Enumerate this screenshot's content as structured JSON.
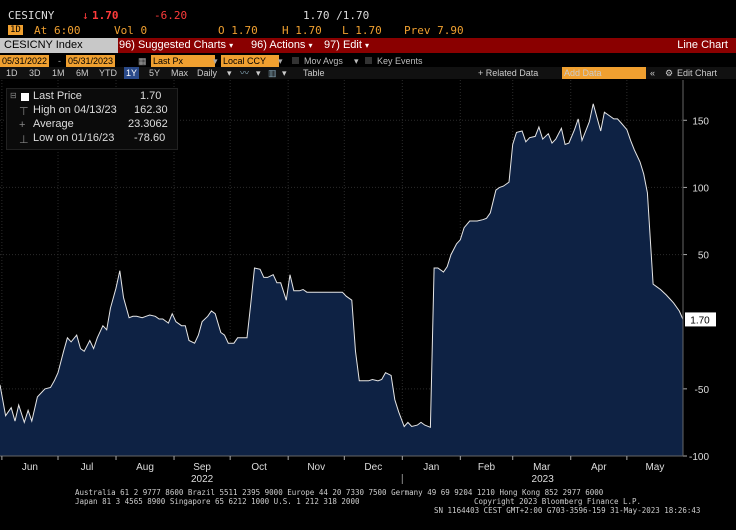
{
  "quote": {
    "ticker": "CESICNY",
    "last": "1.70",
    "change": "-6.20",
    "slash_quote": "1.70 /1.70",
    "at_label": "At",
    "at_time": "6:00",
    "vol": "Vol 0",
    "open": "O 1.70",
    "high": "H 1.70",
    "low": "L 1.70",
    "prev": "Prev 7.90",
    "key_label": "1D"
  },
  "fnbar": {
    "security": "CESICNY Index",
    "items": [
      {
        "num": "96)",
        "label": "Suggested Charts"
      },
      {
        "num": "96)",
        "label": "Actions"
      },
      {
        "num": "97)",
        "label": "Edit"
      }
    ],
    "title": "Line Chart"
  },
  "options": {
    "start_date": "05/31/2022",
    "end_date": "05/31/2023",
    "field": "Last Px",
    "currency": "Local CCY",
    "mov_avgs": "Mov Avgs",
    "key_events": "Key Events"
  },
  "toolbar": {
    "periods": [
      "1D",
      "3D",
      "1M",
      "6M",
      "YTD",
      "1Y",
      "5Y",
      "Max"
    ],
    "selected_period": "1Y",
    "frequency": "Daily",
    "table": "Table",
    "related_data": "+ Related Data",
    "add_data_placeholder": "Add Data",
    "edit_chart": "Edit Chart"
  },
  "legend": {
    "last_price_label": "Last Price",
    "last_price_value": "1.70",
    "high_label": "High on 04/13/23",
    "high_value": "162.30",
    "average_label": "Average",
    "average_value": "23.3062",
    "low_label": "Low on 01/16/23",
    "low_value": "-78.60"
  },
  "chart_data": {
    "type": "area",
    "title": "",
    "xlabel": "",
    "ylabel": "",
    "ylim": [
      -100,
      180
    ],
    "yticks": [
      -100,
      -50,
      50,
      100,
      150
    ],
    "last_label": "1.70",
    "month_labels": [
      "Jun",
      "Jul",
      "Aug",
      "Sep",
      "Oct",
      "Nov",
      "Dec",
      "Jan",
      "Feb",
      "Mar",
      "Apr",
      "May"
    ],
    "year_labels": [
      "2022",
      "2023"
    ],
    "colors": {
      "fill": "#0e2244",
      "line": "#e6e6e6"
    },
    "series": [
      {
        "points": [
          [
            "2022-05-31",
            -47
          ],
          [
            "2022-06-03",
            -70
          ],
          [
            "2022-06-06",
            -64
          ],
          [
            "2022-06-08",
            -74
          ],
          [
            "2022-06-10",
            -62
          ],
          [
            "2022-06-13",
            -75
          ],
          [
            "2022-06-15",
            -66
          ],
          [
            "2022-06-17",
            -74
          ],
          [
            "2022-06-20",
            -56
          ],
          [
            "2022-06-22",
            -53
          ],
          [
            "2022-06-24",
            -50
          ],
          [
            "2022-06-27",
            -49
          ],
          [
            "2022-06-29",
            -44
          ],
          [
            "2022-07-01",
            -38
          ],
          [
            "2022-07-04",
            -22
          ],
          [
            "2022-07-06",
            -12
          ],
          [
            "2022-07-08",
            -15
          ],
          [
            "2022-07-11",
            -10
          ],
          [
            "2022-07-13",
            -20
          ],
          [
            "2022-07-15",
            -22
          ],
          [
            "2022-07-18",
            -14
          ],
          [
            "2022-07-20",
            -20
          ],
          [
            "2022-07-22",
            -12
          ],
          [
            "2022-07-25",
            -3
          ],
          [
            "2022-07-27",
            -6
          ],
          [
            "2022-07-29",
            10
          ],
          [
            "2022-08-01",
            25
          ],
          [
            "2022-08-03",
            38
          ],
          [
            "2022-08-05",
            18
          ],
          [
            "2022-08-08",
            3
          ],
          [
            "2022-08-10",
            4
          ],
          [
            "2022-08-12",
            4
          ],
          [
            "2022-08-15",
            3
          ],
          [
            "2022-08-17",
            4
          ],
          [
            "2022-08-19",
            5
          ],
          [
            "2022-08-22",
            4
          ],
          [
            "2022-08-24",
            2
          ],
          [
            "2022-08-26",
            2
          ],
          [
            "2022-08-29",
            -1
          ],
          [
            "2022-08-31",
            6
          ],
          [
            "2022-09-02",
            0
          ],
          [
            "2022-09-05",
            -3
          ],
          [
            "2022-09-07",
            -3
          ],
          [
            "2022-09-09",
            -14
          ],
          [
            "2022-09-12",
            -16
          ],
          [
            "2022-09-14",
            -10
          ],
          [
            "2022-09-16",
            0
          ],
          [
            "2022-09-19",
            4
          ],
          [
            "2022-09-21",
            8
          ],
          [
            "2022-09-23",
            6
          ],
          [
            "2022-09-26",
            -8
          ],
          [
            "2022-09-28",
            -10
          ],
          [
            "2022-09-30",
            -16
          ],
          [
            "2022-10-03",
            -16
          ],
          [
            "2022-10-05",
            -12
          ],
          [
            "2022-10-07",
            -12
          ],
          [
            "2022-10-10",
            -12
          ],
          [
            "2022-10-12",
            13
          ],
          [
            "2022-10-14",
            40
          ],
          [
            "2022-10-17",
            39
          ],
          [
            "2022-10-19",
            33
          ],
          [
            "2022-10-21",
            33
          ],
          [
            "2022-10-24",
            35
          ],
          [
            "2022-10-26",
            29
          ],
          [
            "2022-10-28",
            29
          ],
          [
            "2022-10-31",
            16
          ],
          [
            "2022-11-02",
            35
          ],
          [
            "2022-11-04",
            23
          ],
          [
            "2022-11-07",
            23
          ],
          [
            "2022-11-09",
            24
          ],
          [
            "2022-11-11",
            22
          ],
          [
            "2022-11-14",
            22
          ],
          [
            "2022-11-16",
            22
          ],
          [
            "2022-11-18",
            22
          ],
          [
            "2022-11-21",
            22
          ],
          [
            "2022-11-23",
            22
          ],
          [
            "2022-11-25",
            22
          ],
          [
            "2022-11-28",
            22
          ],
          [
            "2022-11-30",
            22
          ],
          [
            "2022-12-02",
            19
          ],
          [
            "2022-12-05",
            16
          ],
          [
            "2022-12-07",
            -22
          ],
          [
            "2022-12-09",
            -44
          ],
          [
            "2022-12-12",
            -44
          ],
          [
            "2022-12-14",
            -44
          ],
          [
            "2022-12-16",
            -43
          ],
          [
            "2022-12-19",
            -44
          ],
          [
            "2022-12-21",
            -43
          ],
          [
            "2022-12-23",
            -38
          ],
          [
            "2022-12-26",
            -40
          ],
          [
            "2022-12-28",
            -58
          ],
          [
            "2022-12-30",
            -67
          ],
          [
            "2023-01-02",
            -78
          ],
          [
            "2023-01-04",
            -75
          ],
          [
            "2023-01-06",
            -78
          ],
          [
            "2023-01-09",
            -77
          ],
          [
            "2023-01-11",
            -75
          ],
          [
            "2023-01-13",
            -77
          ],
          [
            "2023-01-16",
            -78.6
          ],
          [
            "2023-01-18",
            40
          ],
          [
            "2023-01-20",
            40
          ],
          [
            "2023-01-23",
            37
          ],
          [
            "2023-01-25",
            41
          ],
          [
            "2023-01-27",
            50
          ],
          [
            "2023-01-30",
            58
          ],
          [
            "2023-02-01",
            61
          ],
          [
            "2023-02-03",
            70
          ],
          [
            "2023-02-06",
            75
          ],
          [
            "2023-02-08",
            75
          ],
          [
            "2023-02-10",
            75
          ],
          [
            "2023-02-13",
            76
          ],
          [
            "2023-02-15",
            77
          ],
          [
            "2023-02-17",
            81
          ],
          [
            "2023-02-20",
            98
          ],
          [
            "2023-02-22",
            100
          ],
          [
            "2023-02-24",
            101
          ],
          [
            "2023-02-27",
            104
          ],
          [
            "2023-03-01",
            132
          ],
          [
            "2023-03-03",
            141
          ],
          [
            "2023-03-06",
            142
          ],
          [
            "2023-03-08",
            134
          ],
          [
            "2023-03-10",
            137
          ],
          [
            "2023-03-13",
            138
          ],
          [
            "2023-03-15",
            145
          ],
          [
            "2023-03-17",
            136
          ],
          [
            "2023-03-20",
            140
          ],
          [
            "2023-03-22",
            133
          ],
          [
            "2023-03-24",
            136
          ],
          [
            "2023-03-27",
            144
          ],
          [
            "2023-03-29",
            132
          ],
          [
            "2023-03-31",
            133
          ],
          [
            "2023-04-03",
            143
          ],
          [
            "2023-04-05",
            151
          ],
          [
            "2023-04-07",
            135
          ],
          [
            "2023-04-11",
            149
          ],
          [
            "2023-04-13",
            162.3
          ],
          [
            "2023-04-17",
            142
          ],
          [
            "2023-04-19",
            156
          ],
          [
            "2023-04-21",
            154
          ],
          [
            "2023-04-24",
            151
          ],
          [
            "2023-04-26",
            151
          ],
          [
            "2023-04-28",
            148
          ],
          [
            "2023-05-01",
            143
          ],
          [
            "2023-05-03",
            135
          ],
          [
            "2023-05-05",
            128
          ],
          [
            "2023-05-08",
            119
          ],
          [
            "2023-05-10",
            110
          ],
          [
            "2023-05-12",
            96
          ],
          [
            "2023-05-15",
            28
          ],
          [
            "2023-05-17",
            26
          ],
          [
            "2023-05-19",
            24
          ],
          [
            "2023-05-22",
            20
          ],
          [
            "2023-05-24",
            17
          ],
          [
            "2023-05-26",
            14
          ],
          [
            "2023-05-29",
            8
          ],
          [
            "2023-05-31",
            1.7
          ]
        ]
      }
    ]
  },
  "footer": {
    "line1": "Australia 61 2 9777 8600 Brazil 5511 2395 9000 Europe 44 20 7330 7500 Germany 49 69 9204 1210 Hong Kong 852 2977 6000",
    "line2a": "Japan 81 3 4565 8900        Singapore 65 6212 1000        U.S. 1 212 318 2000",
    "line2b": "Copyright 2023 Bloomberg Finance L.P.",
    "line3": "SN 1164403 CEST GMT+2:00 G703-3596-159 31-May-2023 18:26:43"
  }
}
